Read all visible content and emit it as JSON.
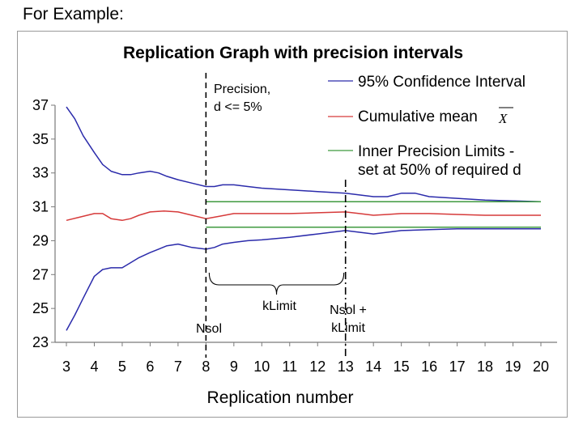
{
  "slide": {
    "heading": "For Example:"
  },
  "chart_data": {
    "type": "line",
    "title": "Replication Graph with precision intervals",
    "xlabel": "Replication number",
    "ylabel": "",
    "xlim": [
      3,
      20
    ],
    "ylim": [
      23,
      37
    ],
    "x_ticks": [
      3,
      4,
      5,
      6,
      7,
      8,
      9,
      10,
      11,
      12,
      13,
      14,
      15,
      16,
      17,
      18,
      19,
      20
    ],
    "y_ticks": [
      23,
      25,
      27,
      29,
      31,
      33,
      35,
      37
    ],
    "grid": false,
    "legend_position": "top-right",
    "series": [
      {
        "name": "95% Confidence Interval",
        "color": "#2b2bab",
        "x": [
          3,
          3.3,
          3.6,
          4,
          4.3,
          4.6,
          5,
          5.3,
          5.6,
          6,
          6.3,
          6.6,
          7,
          7.5,
          8,
          8.3,
          8.6,
          9,
          9.5,
          10,
          11,
          12,
          13,
          13.5,
          14,
          14.5,
          15,
          15.5,
          16,
          17,
          18,
          19,
          20
        ],
        "values": [
          36.9,
          36.2,
          35.2,
          34.2,
          33.5,
          33.1,
          32.9,
          32.9,
          33.0,
          33.1,
          33.0,
          32.8,
          32.6,
          32.4,
          32.2,
          32.2,
          32.3,
          32.3,
          32.2,
          32.1,
          32.0,
          31.9,
          31.8,
          31.7,
          31.6,
          31.6,
          31.8,
          31.8,
          31.6,
          31.5,
          31.4,
          31.35,
          31.3
        ]
      },
      {
        "name": "95% Confidence Interval (lower)",
        "color": "#2b2bab",
        "x": [
          3,
          3.3,
          3.6,
          4,
          4.3,
          4.6,
          5,
          5.3,
          5.6,
          6,
          6.3,
          6.6,
          7,
          7.5,
          8,
          8.3,
          8.6,
          9,
          9.5,
          10,
          11,
          12,
          13,
          13.5,
          14,
          14.5,
          15,
          16,
          17,
          18,
          19,
          20
        ],
        "values": [
          23.7,
          24.6,
          25.6,
          26.9,
          27.3,
          27.4,
          27.4,
          27.7,
          28.0,
          28.3,
          28.5,
          28.7,
          28.8,
          28.6,
          28.5,
          28.6,
          28.8,
          28.9,
          29.0,
          29.05,
          29.2,
          29.4,
          29.6,
          29.5,
          29.4,
          29.5,
          29.6,
          29.65,
          29.7,
          29.7,
          29.7,
          29.7
        ]
      },
      {
        "name": "Cumulative mean",
        "color": "#d63a3a",
        "x": [
          3,
          3.5,
          4,
          4.3,
          4.6,
          5,
          5.3,
          5.6,
          6,
          6.5,
          7,
          7.5,
          8,
          8.5,
          9,
          10,
          11,
          12,
          13,
          13.5,
          14,
          14.5,
          15,
          16,
          17,
          18,
          19,
          20
        ],
        "values": [
          30.2,
          30.4,
          30.6,
          30.6,
          30.3,
          30.2,
          30.3,
          30.5,
          30.7,
          30.75,
          30.7,
          30.5,
          30.3,
          30.45,
          30.6,
          30.6,
          30.6,
          30.65,
          30.7,
          30.6,
          30.5,
          30.55,
          30.6,
          30.6,
          30.55,
          30.5,
          30.5,
          30.5
        ]
      },
      {
        "name": "Inner Precision Limits - set at 50% of required d",
        "color": "#3f9a3f",
        "x": [
          8,
          20
        ],
        "values": [
          31.3,
          31.3
        ]
      },
      {
        "name": "Inner Precision Limits (lower)",
        "color": "#3f9a3f",
        "x": [
          8,
          20
        ],
        "values": [
          29.8,
          29.8
        ]
      }
    ],
    "legend": [
      {
        "label": "95% Confidence Interval",
        "color": "#2b2bab"
      },
      {
        "label": "Cumulative mean",
        "symbol": "X",
        "color": "#d63a3a"
      },
      {
        "label_lines": [
          "Inner Precision Limits -",
          "set at 50% of required d"
        ],
        "color": "#3f9a3f"
      }
    ],
    "vertical_markers": [
      {
        "x": 8,
        "style": "dashed",
        "label_lines": [
          "Nsol"
        ]
      },
      {
        "x": 13,
        "style": "dash-dot",
        "label_lines": [
          "Nsol +",
          "kLimit"
        ]
      }
    ],
    "annotations": [
      {
        "text_lines": [
          "Precision,",
          "d <= 5%"
        ]
      },
      {
        "text": "kLimit",
        "from_x": 8,
        "to_x": 13,
        "type": "brace"
      }
    ]
  }
}
